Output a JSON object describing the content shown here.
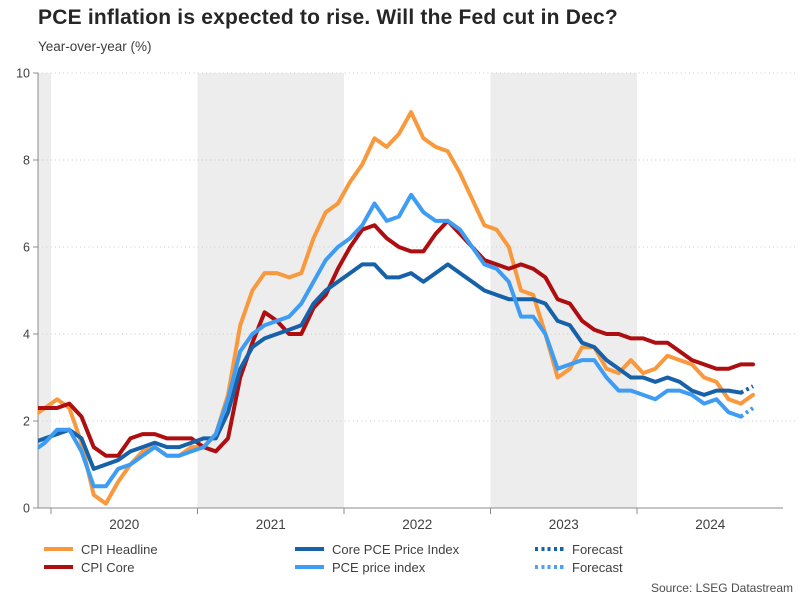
{
  "header": {
    "title": "PCE inflation is expected to rise. Will the Fed cut in Dec?",
    "subtitle": "Year-over-year (%)"
  },
  "footer": {
    "source": "Source: LSEG Datastream"
  },
  "legend": {
    "items": [
      {
        "label": "CPI Headline",
        "color": "#F9993E",
        "style": "solid"
      },
      {
        "label": "CPI Core",
        "color": "#AE0E10",
        "style": "solid"
      },
      {
        "label": "Core PCE Price Index",
        "color": "#1761A9",
        "style": "solid"
      },
      {
        "label": "PCE price index",
        "color": "#3E9CF2",
        "style": "solid"
      },
      {
        "label": "Forecast",
        "color": "#1761A9",
        "style": "dotted"
      },
      {
        "label": "Forecast",
        "color": "#4FA0EE",
        "style": "dotted"
      }
    ]
  },
  "chart_data": {
    "type": "line",
    "title": "PCE inflation is expected to rise. Will the Fed cut in Dec?",
    "ylabel": "Year-over-year (%)",
    "start_month": "2019-11",
    "x_axis": {
      "years": [
        2020,
        2021,
        2022,
        2023,
        2024
      ]
    },
    "y_axis": {
      "min": 0,
      "max": 10,
      "ticks": [
        0,
        2,
        4,
        6,
        8,
        10
      ]
    },
    "shaded_bands": [
      [
        "2019-11",
        "2020-01"
      ],
      [
        "2021-01",
        "2022-01"
      ],
      [
        "2023-01",
        "2024-01"
      ]
    ],
    "colors": {
      "band": "#EDEDED",
      "grid": "#C9C9C9",
      "axis": "#8C8C8C",
      "tick_text": "#3F3F3F"
    },
    "series": [
      {
        "name": "CPI Headline",
        "color": "#F9993E",
        "values": [
          2.1,
          2.3,
          2.5,
          2.3,
          1.5,
          0.3,
          0.1,
          0.6,
          1.0,
          1.3,
          1.4,
          1.2,
          1.2,
          1.4,
          1.4,
          1.7,
          2.6,
          4.2,
          5.0,
          5.4,
          5.4,
          5.3,
          5.4,
          6.2,
          6.8,
          7.0,
          7.5,
          7.9,
          8.5,
          8.3,
          8.6,
          9.1,
          8.5,
          8.3,
          8.2,
          7.7,
          7.1,
          6.5,
          6.4,
          6.0,
          5.0,
          4.9,
          4.0,
          3.0,
          3.2,
          3.7,
          3.7,
          3.2,
          3.1,
          3.4,
          3.1,
          3.2,
          3.5,
          3.4,
          3.3,
          3.0,
          2.9,
          2.5,
          2.4,
          2.6
        ]
      },
      {
        "name": "CPI Core",
        "color": "#AE0E10",
        "values": [
          2.3,
          2.3,
          2.3,
          2.4,
          2.1,
          1.4,
          1.2,
          1.2,
          1.6,
          1.7,
          1.7,
          1.6,
          1.6,
          1.6,
          1.4,
          1.3,
          1.6,
          3.0,
          3.8,
          4.5,
          4.3,
          4.0,
          4.0,
          4.6,
          4.9,
          5.5,
          6.0,
          6.4,
          6.5,
          6.2,
          6.0,
          5.9,
          5.9,
          6.3,
          6.6,
          6.3,
          6.0,
          5.7,
          5.6,
          5.5,
          5.6,
          5.5,
          5.3,
          4.8,
          4.7,
          4.3,
          4.1,
          4.0,
          4.0,
          3.9,
          3.9,
          3.8,
          3.8,
          3.6,
          3.4,
          3.3,
          3.2,
          3.2,
          3.3,
          3.3
        ]
      },
      {
        "name": "Core PCE Price Index",
        "color": "#1761A9",
        "forecast_value": 2.8,
        "values": [
          1.5,
          1.6,
          1.7,
          1.8,
          1.6,
          0.9,
          1.0,
          1.1,
          1.3,
          1.4,
          1.5,
          1.4,
          1.4,
          1.5,
          1.6,
          1.6,
          2.2,
          3.2,
          3.7,
          3.9,
          4.0,
          4.1,
          4.2,
          4.7,
          5.0,
          5.2,
          5.4,
          5.6,
          5.6,
          5.3,
          5.3,
          5.4,
          5.2,
          5.4,
          5.6,
          5.4,
          5.2,
          5.0,
          4.9,
          4.8,
          4.8,
          4.8,
          4.7,
          4.3,
          4.2,
          3.8,
          3.7,
          3.4,
          3.2,
          3.0,
          3.0,
          2.9,
          3.0,
          2.9,
          2.7,
          2.6,
          2.7,
          2.7,
          2.65
        ]
      },
      {
        "name": "PCE price index",
        "color": "#3E9CF2",
        "forecast_value": 2.3,
        "values": [
          1.3,
          1.5,
          1.8,
          1.8,
          1.3,
          0.5,
          0.5,
          0.9,
          1.0,
          1.2,
          1.4,
          1.2,
          1.2,
          1.3,
          1.4,
          1.7,
          2.5,
          3.6,
          4.0,
          4.2,
          4.3,
          4.4,
          4.7,
          5.2,
          5.7,
          6.0,
          6.2,
          6.5,
          7.0,
          6.6,
          6.7,
          7.2,
          6.8,
          6.6,
          6.6,
          6.4,
          6.0,
          5.6,
          5.5,
          5.2,
          4.4,
          4.4,
          4.0,
          3.2,
          3.3,
          3.4,
          3.4,
          3.0,
          2.7,
          2.7,
          2.6,
          2.5,
          2.7,
          2.7,
          2.6,
          2.4,
          2.5,
          2.2,
          2.1
        ]
      }
    ]
  }
}
